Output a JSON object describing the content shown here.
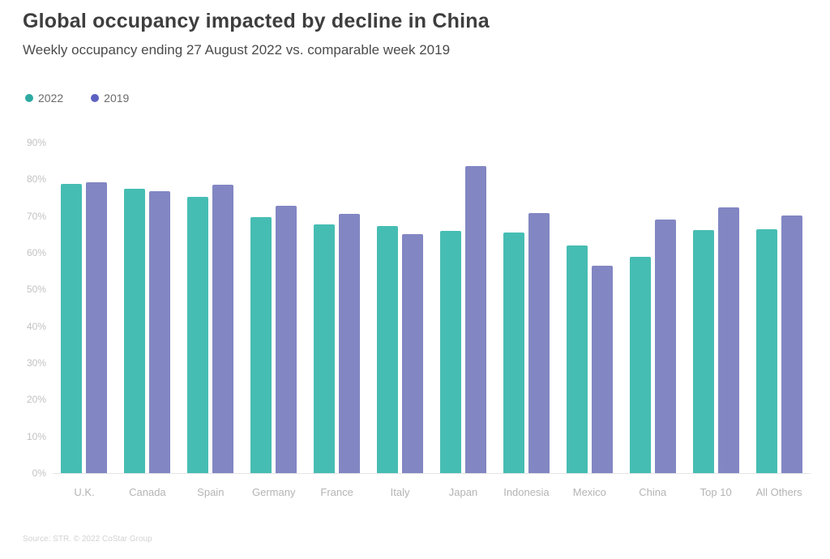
{
  "header": {
    "title": "Global occupancy impacted by decline in China",
    "subtitle": "Weekly occupancy ending 27 August 2022 vs. comparable week 2019"
  },
  "legend": {
    "items": [
      {
        "label": "2022",
        "dot_color": "#2eaaa0"
      },
      {
        "label": "2019",
        "dot_color": "#5d61c0"
      }
    ]
  },
  "chart_data": {
    "type": "bar",
    "title": "Global occupancy impacted by decline in China",
    "subtitle": "Weekly occupancy ending 27 August 2022 vs. comparable week 2019",
    "categories": [
      "U.K.",
      "Canada",
      "Spain",
      "Germany",
      "France",
      "Italy",
      "Japan",
      "Indonesia",
      "Mexico",
      "China",
      "Top 10",
      "All Others"
    ],
    "series": [
      {
        "name": "2022",
        "color": "#46bdb3",
        "values": [
          78.8,
          77.5,
          75.3,
          69.8,
          67.8,
          67.3,
          66.0,
          65.6,
          62.0,
          59.0,
          66.2,
          66.5
        ]
      },
      {
        "name": "2019",
        "color": "#8286c3",
        "values": [
          79.3,
          76.8,
          78.6,
          72.8,
          70.6,
          65.0,
          83.7,
          70.9,
          56.5,
          69.0,
          72.4,
          70.2
        ]
      }
    ],
    "xlabel": "",
    "ylabel": "",
    "yticks": [
      0,
      10,
      20,
      30,
      40,
      50,
      60,
      70,
      80,
      90
    ],
    "ytick_suffix": "%",
    "ylim": [
      0,
      90
    ],
    "grid": false,
    "legend_position": "top-left"
  },
  "footer": {
    "source": "Source: STR. © 2022 CoStar Group"
  },
  "colors": {
    "series_2022_bar": "#46bdb3",
    "series_2019_bar": "#8286c3",
    "title_text": "#3e3e3e",
    "axis_text": "#c2c2c2",
    "background": "#ffffff"
  }
}
